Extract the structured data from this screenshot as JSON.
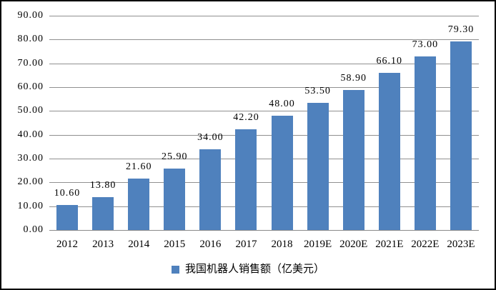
{
  "chart_data": {
    "type": "bar",
    "title": "",
    "categories": [
      "2012",
      "2013",
      "2014",
      "2015",
      "2016",
      "2017",
      "2018",
      "2019E",
      "2020E",
      "2021E",
      "2022E",
      "2023E"
    ],
    "values": [
      10.6,
      13.8,
      21.6,
      25.9,
      34.0,
      42.2,
      48.0,
      53.5,
      58.9,
      66.1,
      73.0,
      79.3
    ],
    "value_labels": [
      "10.60",
      "13.80",
      "21.60",
      "25.90",
      "34.00",
      "42.20",
      "48.00",
      "53.50",
      "58.90",
      "66.10",
      "73.00",
      "79.30"
    ],
    "series_name": "我国机器人销售额（亿美元）",
    "xlabel": "",
    "ylabel": "",
    "ylim": [
      0,
      90
    ],
    "y_ticks": [
      {
        "value": 0,
        "label": "0.00"
      },
      {
        "value": 10,
        "label": "10.00"
      },
      {
        "value": 20,
        "label": "20.00"
      },
      {
        "value": 30,
        "label": "30.00"
      },
      {
        "value": 40,
        "label": "40.00"
      },
      {
        "value": 50,
        "label": "50.00"
      },
      {
        "value": 60,
        "label": "60.00"
      },
      {
        "value": 70,
        "label": "70.00"
      },
      {
        "value": 80,
        "label": "80.00"
      },
      {
        "value": 90,
        "label": "90.00"
      }
    ],
    "grid": true,
    "legend_position": "bottom",
    "colors": {
      "bar": "#4F81BD",
      "gridline": "#909090",
      "text": "#000000",
      "background": "#FFFFFF",
      "frame_border": "#000000"
    }
  },
  "legend": {
    "marker": "blue-square",
    "label": "我国机器人销售额（亿美元）"
  }
}
